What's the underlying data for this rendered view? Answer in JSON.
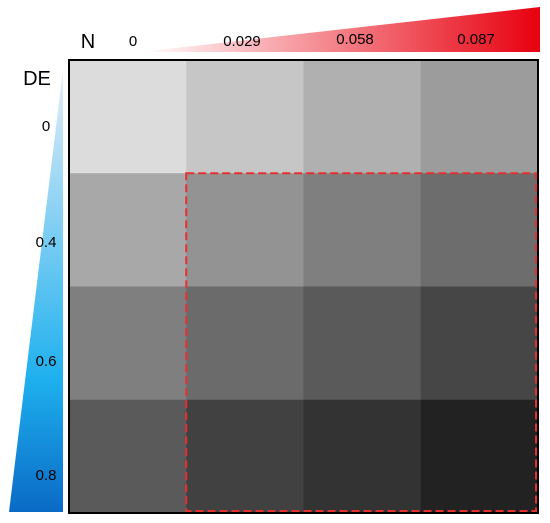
{
  "axes": {
    "x_symbol": "N",
    "y_symbol": "DE",
    "x_ticks": [
      "0",
      "0.029",
      "0.058",
      "0.087"
    ],
    "y_ticks": [
      "0",
      "0.4",
      "0.6",
      "0.8"
    ]
  },
  "colors": {
    "x_wedge_light": "#ffffff",
    "x_wedge_dark": "#e8000f",
    "y_wedge_light": "#e6eef8",
    "y_wedge_mid": "#1eb0ee",
    "y_wedge_dark": "#0a6ac6",
    "highlight_box": "#e53030",
    "grid_border": "#000000"
  },
  "grid": {
    "rows": 4,
    "cols": 4,
    "cell_colors": [
      [
        "#dcdcdc",
        "#c6c6c6",
        "#b0b0b0",
        "#9c9c9c"
      ],
      [
        "#a8a8a8",
        "#939393",
        "#7f7f7f",
        "#6d6d6d"
      ],
      [
        "#7f7f7f",
        "#6b6b6b",
        "#5a5a5a",
        "#464646"
      ],
      [
        "#5a5a5a",
        "#414141",
        "#333333",
        "#222222"
      ]
    ],
    "highlight": {
      "row_start": 1,
      "row_end": 3,
      "col_start": 1,
      "col_end": 3
    }
  }
}
